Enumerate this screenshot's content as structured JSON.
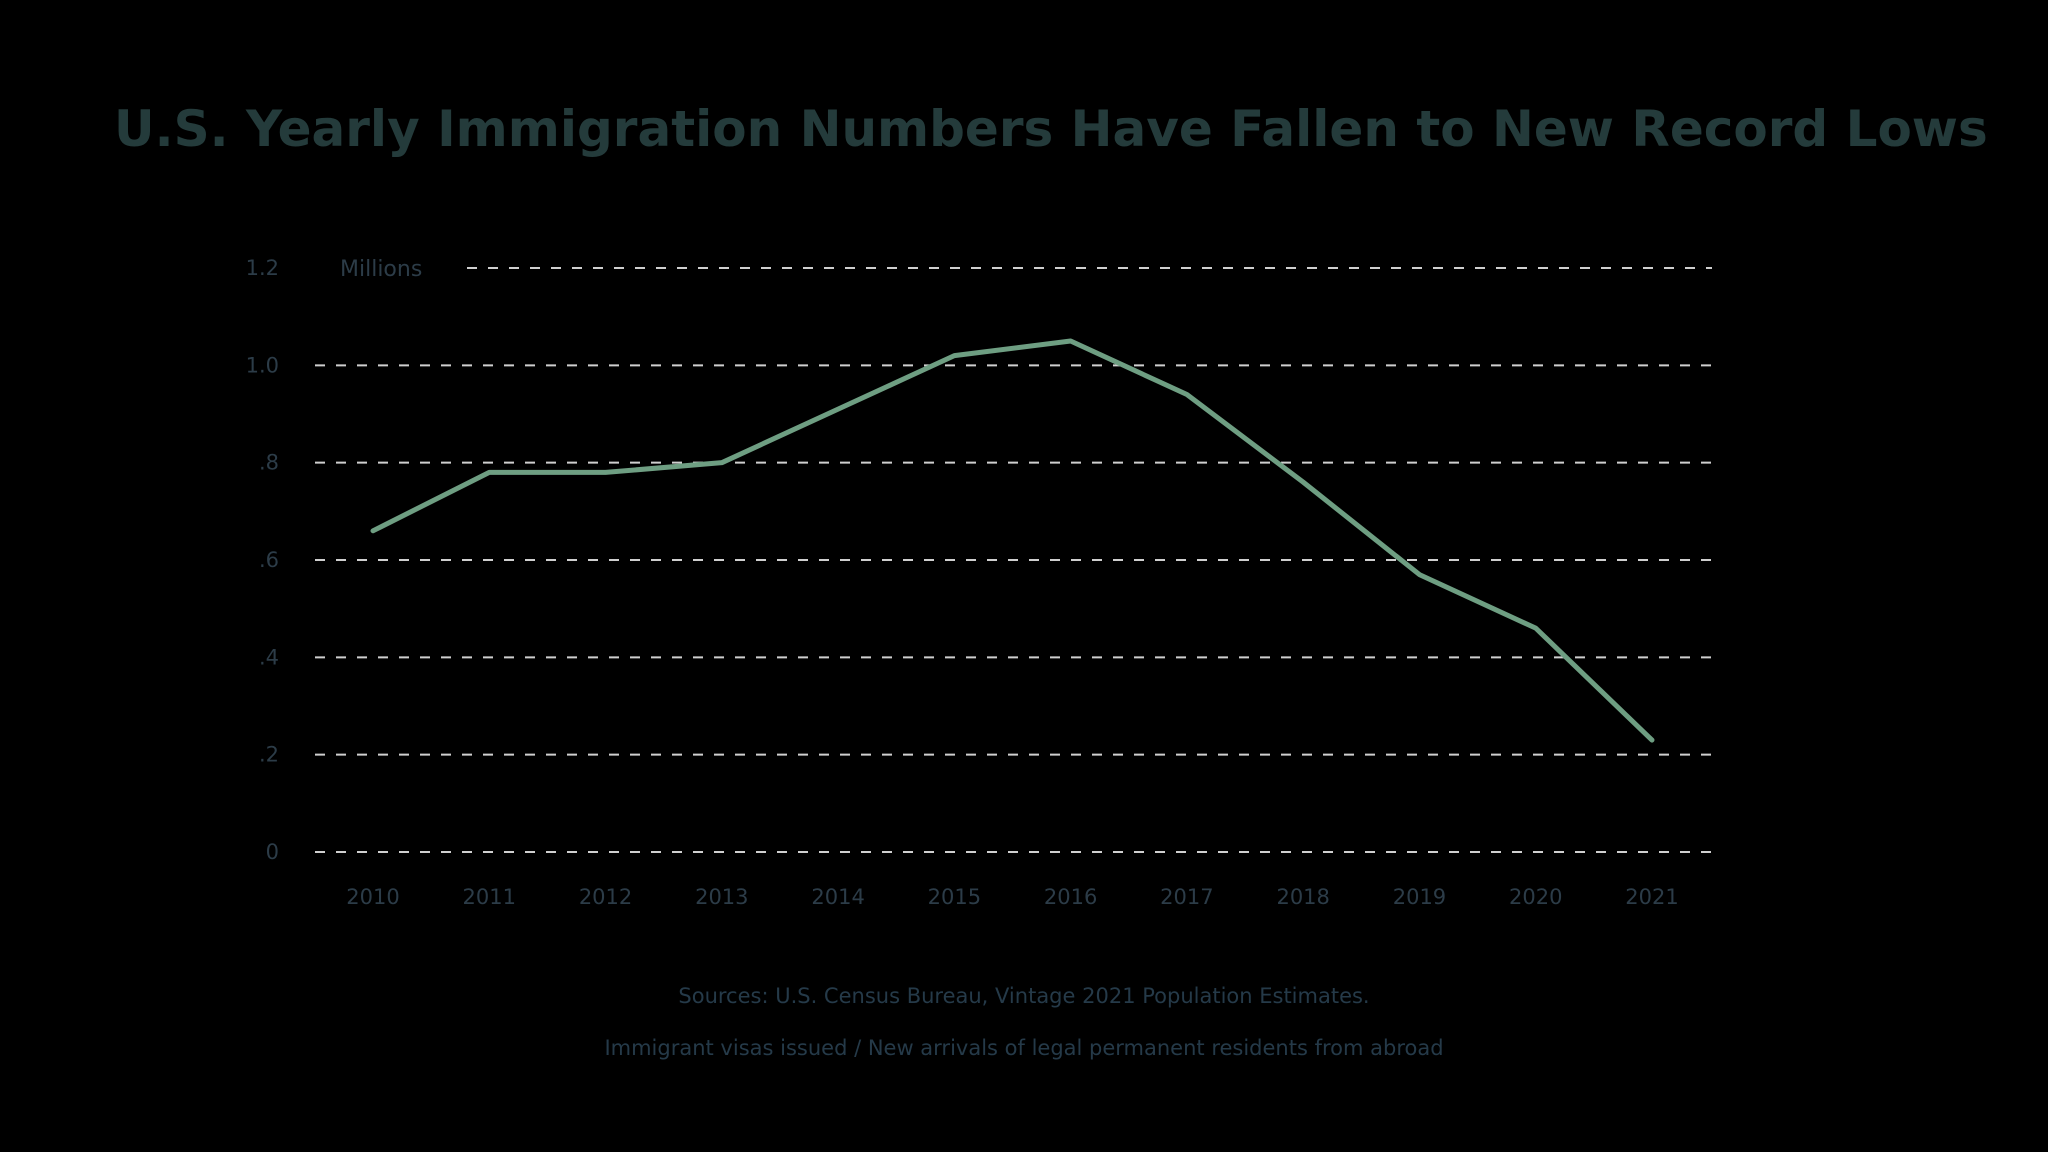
{
  "chart_data": {
    "type": "line",
    "title": "U.S. Yearly Immigration Numbers Have Fallen to New Record Lows",
    "ylabel": "Millions",
    "xlabel": "",
    "ylim": [
      0,
      1.2
    ],
    "grid": true,
    "y_ticks": [
      {
        "value": 0,
        "label": "0"
      },
      {
        "value": 0.2,
        "label": ".2"
      },
      {
        "value": 0.4,
        "label": ".4"
      },
      {
        "value": 0.6,
        "label": ".6"
      },
      {
        "value": 0.8,
        "label": ".8"
      },
      {
        "value": 1.0,
        "label": "1.0"
      },
      {
        "value": 1.2,
        "label": "1.2"
      }
    ],
    "x": [
      "2010",
      "2011",
      "2012",
      "2013",
      "2014",
      "2015",
      "2016",
      "2017",
      "2018",
      "2019",
      "2020",
      "2021"
    ],
    "series": [
      {
        "values": [
          0.66,
          0.78,
          0.78,
          0.8,
          0.91,
          1.02,
          1.05,
          0.94,
          0.76,
          0.57,
          0.46,
          0.23
        ]
      }
    ],
    "sources": [
      "Sources: U.S. Census Bureau, Vintage 2021 Population Estimates.",
      "Immigrant visas issued / New arrivals of legal permanent residents from abroad"
    ]
  },
  "colors": {
    "background": "#000000",
    "title": "#243b3b",
    "line": "#6e9e82",
    "gridline": "#cfcfcf",
    "tick_label": "#2c3c48"
  }
}
